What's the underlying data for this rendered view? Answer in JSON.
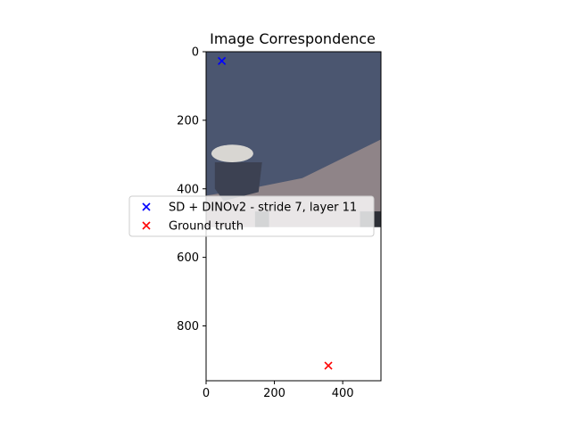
{
  "chart_data": {
    "type": "scatter",
    "title": "Image Correspondence",
    "xlabel": "",
    "ylabel": "",
    "xlim": [
      0,
      512
    ],
    "ylim": [
      960,
      0
    ],
    "xticks": [
      0,
      200,
      400
    ],
    "yticks": [
      0,
      200,
      400,
      600,
      800
    ],
    "grid": false,
    "legend_position": "center-left",
    "background_image": {
      "description": "dark slate-blue upper area with a pinkish-grey diagonal wedge at the bottom and a small grey object on the left",
      "x_extent": [
        0,
        512
      ],
      "y_extent": [
        0,
        512
      ],
      "colors": {
        "top": "#4b5670",
        "wedge": "#8f8488",
        "dark": "#2c2f36",
        "light": "#d8d6d2"
      }
    },
    "series": [
      {
        "name": "SD + DINOv2 - stride 7, layer 11",
        "marker": "x",
        "color": "#0000ff",
        "points": [
          {
            "x": 46,
            "y": 27
          }
        ]
      },
      {
        "name": "Ground truth",
        "marker": "x",
        "color": "#ff0000",
        "points": [
          {
            "x": 358,
            "y": 916
          }
        ]
      }
    ]
  }
}
